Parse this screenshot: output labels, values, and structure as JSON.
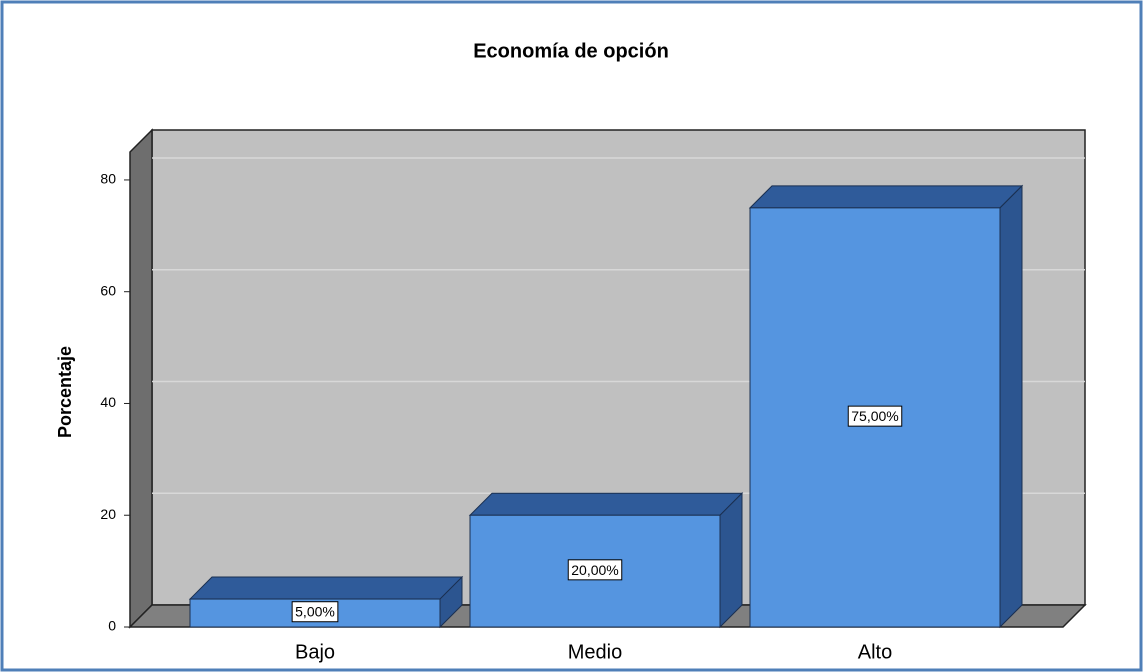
{
  "chart_data": {
    "type": "bar3d",
    "title": "Economía de opción",
    "y_label": "Porcentaje",
    "categories": [
      "Bajo",
      "Medio",
      "Alto"
    ],
    "values": [
      5,
      20,
      75
    ],
    "value_labels": [
      "5,00%",
      "20,00%",
      "75,00%"
    ],
    "color": "#5595e0",
    "ylim": [
      0,
      85
    ],
    "yticks": [
      0,
      20,
      40,
      60,
      80
    ],
    "grid": true
  }
}
